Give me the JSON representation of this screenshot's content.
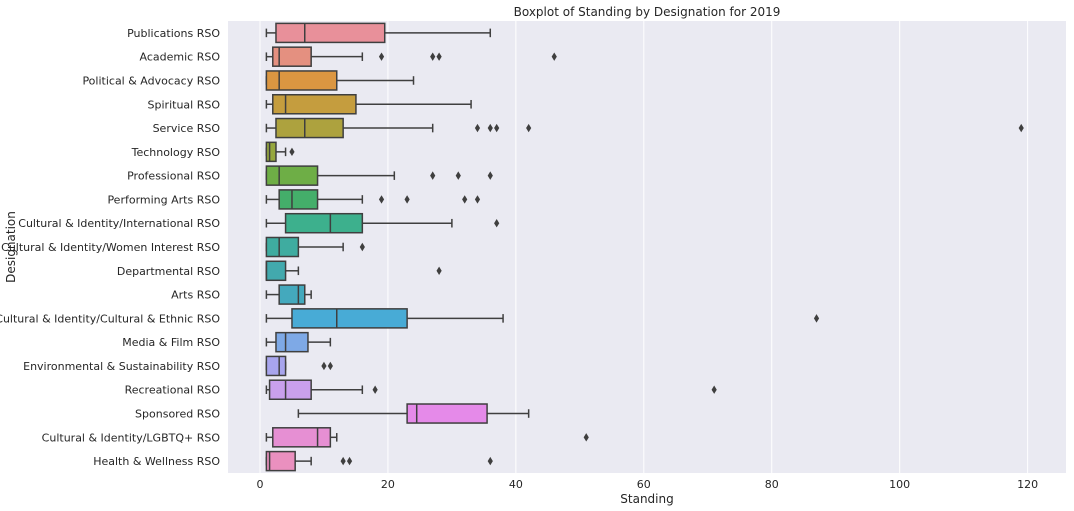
{
  "chart_data": {
    "type": "boxplot",
    "title": "Boxplot of Standing by Designation for 2019",
    "xlabel": "Standing",
    "ylabel": "Designation",
    "xlim": [
      -5,
      126
    ],
    "xticks": [
      0,
      20,
      40,
      60,
      80,
      100,
      120
    ],
    "grid": true,
    "orientation": "horizontal",
    "background": "#EAEAF2",
    "grid_color": "#FFFFFF",
    "box_edge_color": "#3F3F3F",
    "categories": [
      {
        "name": "Publications RSO",
        "color": "#E8909A",
        "whisker_low": 1,
        "q1": 2.5,
        "median": 7,
        "q3": 19.5,
        "whisker_high": 36,
        "outliers": []
      },
      {
        "name": "Academic RSO",
        "color": "#E49080",
        "whisker_low": 1,
        "q1": 2,
        "median": 3,
        "q3": 8,
        "whisker_high": 16,
        "outliers": [
          19,
          27,
          28,
          46
        ]
      },
      {
        "name": "Political & Advocacy RSO",
        "color": "#DB9641",
        "whisker_low": 1,
        "q1": 1,
        "median": 3,
        "q3": 12,
        "whisker_high": 24,
        "outliers": []
      },
      {
        "name": "Spiritual RSO",
        "color": "#C59D3E",
        "whisker_low": 1,
        "q1": 2,
        "median": 4,
        "q3": 15,
        "whisker_high": 33,
        "outliers": []
      },
      {
        "name": "Service RSO",
        "color": "#ADA23E",
        "whisker_low": 1,
        "q1": 2.5,
        "median": 7,
        "q3": 13,
        "whisker_high": 27,
        "outliers": [
          34,
          36,
          37,
          42,
          119
        ]
      },
      {
        "name": "Technology RSO",
        "color": "#96A73E",
        "whisker_low": 1,
        "q1": 1,
        "median": 1.5,
        "q3": 2.5,
        "whisker_high": 4,
        "outliers": [
          5
        ]
      },
      {
        "name": "Professional RSO",
        "color": "#6EAE46",
        "whisker_low": 1,
        "q1": 1,
        "median": 3,
        "q3": 9,
        "whisker_high": 21,
        "outliers": [
          27,
          31,
          36
        ]
      },
      {
        "name": "Performing Arts RSO",
        "color": "#44AE6A",
        "whisker_low": 1,
        "q1": 3,
        "median": 5,
        "q3": 9,
        "whisker_high": 16,
        "outliers": [
          19,
          23,
          32,
          34
        ]
      },
      {
        "name": "Cultural & Identity/International RSO",
        "color": "#3DB08D",
        "whisker_low": 1,
        "q1": 4,
        "median": 11,
        "q3": 16,
        "whisker_high": 30,
        "outliers": [
          37
        ]
      },
      {
        "name": "Cultural & Identity/Women Interest RSO",
        "color": "#3FACA0",
        "whisker_low": 1,
        "q1": 1,
        "median": 3,
        "q3": 6,
        "whisker_high": 13,
        "outliers": [
          16
        ]
      },
      {
        "name": "Departmental RSO",
        "color": "#42A9AD",
        "whisker_low": 1,
        "q1": 1,
        "median": 1,
        "q3": 4,
        "whisker_high": 6,
        "outliers": [
          28
        ]
      },
      {
        "name": "Arts RSO",
        "color": "#44A9BD",
        "whisker_low": 1,
        "q1": 3,
        "median": 6,
        "q3": 7,
        "whisker_high": 8,
        "outliers": []
      },
      {
        "name": "Cultural & Identity/Cultural & Ethnic RSO",
        "color": "#48ABD6",
        "whisker_low": 1,
        "q1": 5,
        "median": 12,
        "q3": 23,
        "whisker_high": 38,
        "outliers": [
          87
        ]
      },
      {
        "name": "Media & Film RSO",
        "color": "#7EA9E6",
        "whisker_low": 1,
        "q1": 2.5,
        "median": 4,
        "q3": 7.5,
        "whisker_high": 11,
        "outliers": []
      },
      {
        "name": "Environmental & Sustainability RSO",
        "color": "#A8A5ED",
        "whisker_low": 1,
        "q1": 1,
        "median": 3,
        "q3": 4,
        "whisker_high": 4,
        "outliers": [
          10,
          11
        ]
      },
      {
        "name": "Recreational RSO",
        "color": "#C9A0EC",
        "whisker_low": 1,
        "q1": 1.5,
        "median": 4,
        "q3": 8,
        "whisker_high": 16,
        "outliers": [
          18,
          71
        ]
      },
      {
        "name": "Sponsored RSO",
        "color": "#E58AE9",
        "whisker_low": 6,
        "q1": 23,
        "median": 24.5,
        "q3": 35.5,
        "whisker_high": 42,
        "outliers": []
      },
      {
        "name": "Cultural & Identity/LGBTQ+ RSO",
        "color": "#E68FD3",
        "whisker_low": 1,
        "q1": 2,
        "median": 9,
        "q3": 11,
        "whisker_high": 12,
        "outliers": [
          51
        ]
      },
      {
        "name": "Health & Wellness RSO",
        "color": "#EA90BF",
        "whisker_low": 1,
        "q1": 1,
        "median": 1.5,
        "q3": 5.5,
        "whisker_high": 8,
        "outliers": [
          13,
          14,
          36
        ]
      }
    ]
  }
}
